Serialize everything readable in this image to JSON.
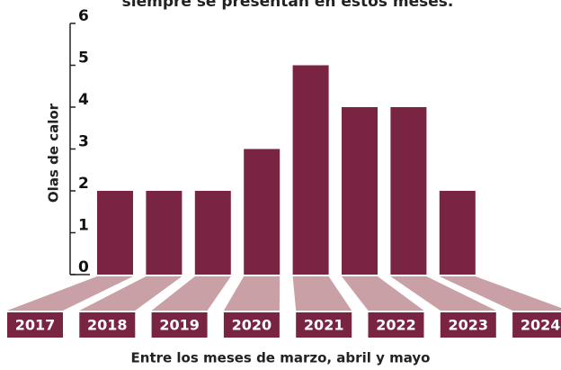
{
  "chart_data": {
    "type": "bar",
    "subtitle": "siempre se presentan en estos meses.",
    "ylabel": "Olas de calor",
    "xlabel": "Entre los meses de marzo, abril y mayo",
    "categories": [
      "2017",
      "2018",
      "2019",
      "2020",
      "2021",
      "2022",
      "2023",
      "2024"
    ],
    "values": [
      2,
      2,
      2,
      3,
      5,
      4,
      4,
      2
    ],
    "color": "#7a2444",
    "ylim": [
      0,
      6
    ],
    "yticks": [
      0,
      1,
      2,
      3,
      4,
      5,
      6
    ]
  }
}
